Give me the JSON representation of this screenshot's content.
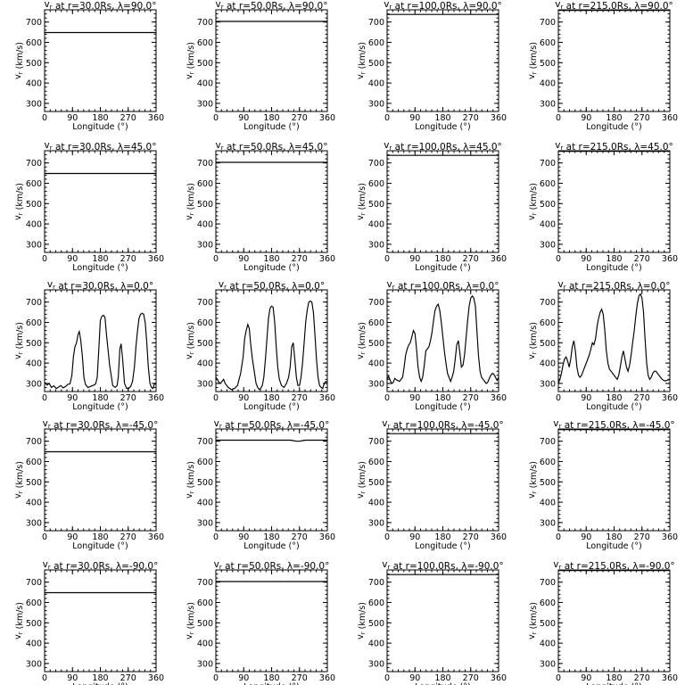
{
  "chart_data": {
    "type": "line",
    "panels": [
      {
        "title": "v_r at r=30.0Rs, λ=90.0°",
        "r": "30.0Rs",
        "lambda": "90.0°",
        "ylim": [
          260,
          760
        ],
        "x": [
          0,
          360
        ],
        "y": [
          648,
          648
        ]
      },
      {
        "title": "v_r at r=50.0Rs, λ=90.0°",
        "r": "50.0Rs",
        "lambda": "90.0°",
        "ylim": [
          260,
          760
        ],
        "x": [
          0,
          360
        ],
        "y": [
          703,
          703
        ]
      },
      {
        "title": "v_r at r=100.0Rs, λ=90.0°",
        "r": "100.0Rs",
        "lambda": "90.0°",
        "ylim": [
          260,
          760
        ],
        "x": [
          0,
          360
        ],
        "y": [
          737,
          737
        ]
      },
      {
        "title": "v_r at r=215.0Rs, λ=90.0°",
        "r": "215.0Rs",
        "lambda": "90.0°",
        "ylim": [
          260,
          760
        ],
        "x": [
          0,
          360
        ],
        "y": [
          757,
          757
        ]
      },
      {
        "title": "v_r at r=30.0Rs, λ=45.0°",
        "r": "30.0Rs",
        "lambda": "45.0°",
        "ylim": [
          260,
          760
        ],
        "x": [
          0,
          360
        ],
        "y": [
          648,
          648
        ]
      },
      {
        "title": "v_r at r=50.0Rs, λ=45.0°",
        "r": "50.0Rs",
        "lambda": "45.0°",
        "ylim": [
          260,
          760
        ],
        "x": [
          0,
          360
        ],
        "y": [
          703,
          703
        ]
      },
      {
        "title": "v_r at r=100.0Rs, λ=45.0°",
        "r": "100.0Rs",
        "lambda": "45.0°",
        "ylim": [
          260,
          760
        ],
        "x": [
          0,
          360
        ],
        "y": [
          737,
          737
        ]
      },
      {
        "title": "v_r at r=215.0Rs, λ=45.0°",
        "r": "215.0Rs",
        "lambda": "45.0°",
        "ylim": [
          260,
          760
        ],
        "x": [
          0,
          360
        ],
        "y": [
          757,
          757
        ]
      },
      {
        "title": "v_r at r=30.0Rs, λ=0.0°",
        "r": "30.0Rs",
        "lambda": "0.0°",
        "ylim": [
          260,
          760
        ],
        "x": [
          0,
          8,
          15,
          22,
          30,
          38,
          45,
          52,
          60,
          68,
          75,
          82,
          88,
          93,
          98,
          103,
          108,
          112,
          117,
          122,
          127,
          132,
          140,
          148,
          155,
          160,
          165,
          170,
          175,
          180,
          185,
          190,
          195,
          200,
          210,
          220,
          228,
          234,
          238,
          243,
          247,
          252,
          258,
          265,
          272,
          278,
          284,
          290,
          295,
          300,
          305,
          310,
          315,
          320,
          325,
          330,
          335,
          340,
          345,
          350,
          355,
          360
        ],
        "y": [
          305,
          292,
          300,
          280,
          288,
          275,
          282,
          290,
          278,
          285,
          295,
          298,
          340,
          430,
          480,
          500,
          540,
          555,
          510,
          430,
          330,
          295,
          280,
          285,
          290,
          292,
          298,
          330,
          470,
          610,
          630,
          635,
          625,
          540,
          390,
          290,
          280,
          290,
          330,
          470,
          495,
          420,
          300,
          275,
          275,
          285,
          310,
          380,
          480,
          560,
          620,
          640,
          645,
          640,
          600,
          500,
          380,
          300,
          280,
          275,
          300,
          295
        ]
      },
      {
        "title": "v_r at r=50.0Rs, λ=0.0°",
        "r": "50.0Rs",
        "lambda": "0.0°",
        "ylim": [
          260,
          760
        ],
        "x": [
          0,
          5,
          10,
          15,
          20,
          25,
          30,
          40,
          50,
          60,
          70,
          80,
          88,
          93,
          98,
          103,
          108,
          112,
          118,
          125,
          130,
          135,
          140,
          145,
          150,
          155,
          160,
          165,
          170,
          175,
          180,
          185,
          190,
          195,
          200,
          205,
          212,
          220,
          228,
          235,
          240,
          245,
          250,
          255,
          260,
          265,
          270,
          275,
          280,
          285,
          290,
          295,
          300,
          305,
          310,
          315,
          320,
          325,
          330,
          335,
          340,
          345,
          350,
          355,
          360
        ],
        "y": [
          330,
          320,
          305,
          300,
          310,
          320,
          300,
          280,
          270,
          275,
          290,
          350,
          430,
          520,
          560,
          590,
          570,
          500,
          420,
          350,
          300,
          280,
          270,
          275,
          290,
          330,
          420,
          520,
          620,
          670,
          680,
          675,
          600,
          480,
          380,
          320,
          290,
          280,
          300,
          330,
          380,
          480,
          500,
          420,
          330,
          290,
          290,
          330,
          400,
          500,
          600,
          660,
          700,
          705,
          700,
          650,
          540,
          420,
          330,
          290,
          280,
          275,
          300,
          310,
          305
        ]
      },
      {
        "title": "v_r at r=100.0Rs, λ=0.0°",
        "r": "100.0Rs",
        "lambda": "0.0°",
        "ylim": [
          260,
          760
        ],
        "x": [
          0,
          5,
          10,
          15,
          20,
          25,
          30,
          40,
          50,
          55,
          60,
          65,
          70,
          75,
          80,
          85,
          90,
          95,
          100,
          105,
          110,
          115,
          120,
          125,
          130,
          135,
          140,
          145,
          150,
          155,
          160,
          165,
          170,
          175,
          180,
          185,
          190,
          195,
          200,
          205,
          210,
          215,
          220,
          225,
          230,
          235,
          240,
          245,
          250,
          255,
          260,
          265,
          270,
          275,
          280,
          285,
          290,
          295,
          300,
          305,
          310,
          315,
          320,
          325,
          330,
          335,
          340,
          345,
          350,
          355,
          360
        ],
        "y": [
          320,
          335,
          315,
          300,
          305,
          325,
          318,
          310,
          330,
          380,
          440,
          470,
          490,
          500,
          530,
          560,
          545,
          470,
          380,
          330,
          310,
          330,
          390,
          460,
          470,
          480,
          510,
          550,
          610,
          660,
          680,
          690,
          660,
          600,
          530,
          460,
          400,
          350,
          330,
          310,
          330,
          360,
          420,
          490,
          510,
          450,
          380,
          390,
          440,
          520,
          610,
          680,
          720,
          730,
          720,
          680,
          560,
          440,
          360,
          330,
          320,
          310,
          300,
          305,
          325,
          340,
          350,
          345,
          330,
          315,
          330
        ]
      },
      {
        "title": "v_r at r=215.0Rs, λ=0.0°",
        "r": "215.0Rs",
        "lambda": "0.0°",
        "ylim": [
          260,
          760
        ],
        "x": [
          0,
          5,
          10,
          15,
          20,
          25,
          30,
          35,
          40,
          45,
          50,
          55,
          60,
          65,
          70,
          75,
          80,
          85,
          90,
          95,
          100,
          105,
          110,
          115,
          120,
          125,
          130,
          135,
          140,
          145,
          150,
          155,
          160,
          165,
          170,
          175,
          180,
          185,
          190,
          195,
          200,
          205,
          210,
          215,
          220,
          225,
          230,
          235,
          240,
          245,
          250,
          255,
          260,
          265,
          270,
          275,
          280,
          285,
          290,
          295,
          300,
          305,
          310,
          315,
          320,
          325,
          330,
          335,
          340,
          345,
          350,
          355,
          360
        ],
        "y": [
          300,
          320,
          350,
          390,
          420,
          430,
          410,
          380,
          420,
          480,
          510,
          460,
          380,
          340,
          330,
          340,
          360,
          380,
          400,
          420,
          440,
          470,
          500,
          490,
          520,
          580,
          620,
          650,
          665,
          640,
          560,
          460,
          400,
          370,
          360,
          350,
          340,
          330,
          320,
          340,
          380,
          430,
          460,
          420,
          380,
          360,
          390,
          440,
          500,
          560,
          630,
          690,
          730,
          740,
          720,
          650,
          520,
          400,
          340,
          320,
          330,
          350,
          360,
          360,
          350,
          340,
          330,
          320,
          315,
          312,
          315,
          318,
          320
        ]
      },
      {
        "title": "v_r at r=30.0Rs, λ=-45.0°",
        "r": "30.0Rs",
        "lambda": "-45.0°",
        "ylim": [
          260,
          760
        ],
        "x": [
          0,
          360
        ],
        "y": [
          648,
          648
        ]
      },
      {
        "title": "v_r at r=50.0Rs, λ=-45.0°",
        "r": "50.0Rs",
        "lambda": "-45.0°",
        "ylim": [
          260,
          760
        ],
        "x": [
          0,
          240,
          250,
          260,
          270,
          280,
          290,
          360
        ],
        "y": [
          705,
          705,
          703,
          700,
          700,
          703,
          705,
          705
        ]
      },
      {
        "title": "v_r at r=100.0Rs, λ=-45.0°",
        "r": "100.0Rs",
        "lambda": "-45.0°",
        "ylim": [
          260,
          760
        ],
        "x": [
          0,
          360
        ],
        "y": [
          737,
          737
        ]
      },
      {
        "title": "v_r at r=215.0Rs, λ=-45.0°",
        "r": "215.0Rs",
        "lambda": "-45.0°",
        "ylim": [
          260,
          760
        ],
        "x": [
          0,
          360
        ],
        "y": [
          757,
          757
        ]
      },
      {
        "title": "v_r at r=30.0Rs, λ=-90.0°",
        "r": "30.0Rs",
        "lambda": "-90.0°",
        "ylim": [
          260,
          760
        ],
        "x": [
          0,
          360
        ],
        "y": [
          648,
          648
        ]
      },
      {
        "title": "v_r at r=50.0Rs, λ=-90.0°",
        "r": "50.0Rs",
        "lambda": "-90.0°",
        "ylim": [
          260,
          760
        ],
        "x": [
          0,
          360
        ],
        "y": [
          703,
          703
        ]
      },
      {
        "title": "v_r at r=100.0Rs, λ=-90.0°",
        "r": "100.0Rs",
        "lambda": "-90.0°",
        "ylim": [
          260,
          760
        ],
        "x": [
          0,
          360
        ],
        "y": [
          737,
          737
        ]
      },
      {
        "title": "v_r at r=215.0Rs, λ=-90.0°",
        "r": "215.0Rs",
        "lambda": "-90.0°",
        "ylim": [
          260,
          760
        ],
        "x": [
          0,
          360
        ],
        "y": [
          757,
          757
        ]
      }
    ],
    "xlabel": "Longitude (°)",
    "ylabel": "v_r (km/s)",
    "xlim": [
      0,
      360
    ],
    "xticks": [
      "0",
      "90",
      "180",
      "270",
      "360"
    ],
    "yticks": [
      "300",
      "400",
      "500",
      "600",
      "700"
    ],
    "grid": false
  }
}
